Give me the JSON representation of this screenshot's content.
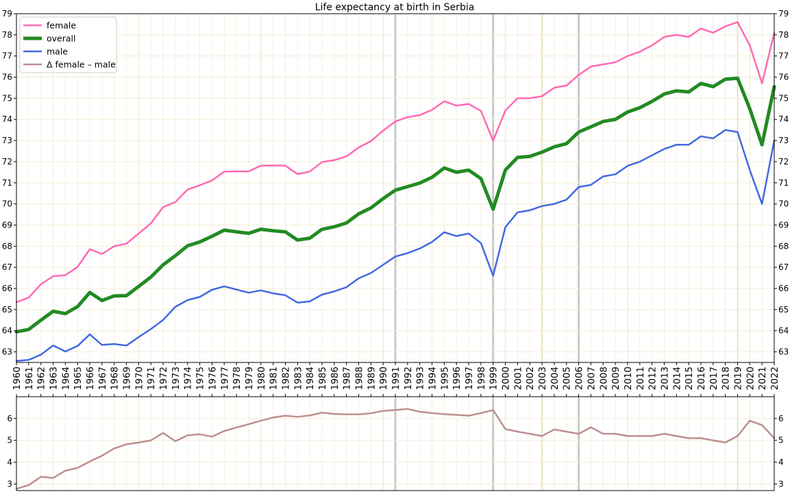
{
  "chart_data": [
    {
      "type": "line",
      "title": "Life expectancy at birth in Serbia",
      "xlabel": "",
      "ylabel": "",
      "xlim": [
        1960,
        2022
      ],
      "ylim": [
        62.5,
        79
      ],
      "yticks": [
        63,
        64,
        65,
        66,
        67,
        68,
        69,
        70,
        71,
        72,
        73,
        74,
        75,
        76,
        77,
        78,
        79
      ],
      "grid": true,
      "legend_position": "top-left",
      "highlight_years": {
        "gray": [
          1991,
          1999,
          2006
        ],
        "tan": [
          2003,
          2019
        ]
      },
      "x": [
        1960,
        1961,
        1962,
        1963,
        1964,
        1965,
        1966,
        1967,
        1968,
        1969,
        1970,
        1971,
        1972,
        1973,
        1974,
        1975,
        1976,
        1977,
        1978,
        1979,
        1980,
        1981,
        1982,
        1983,
        1984,
        1985,
        1986,
        1987,
        1988,
        1989,
        1990,
        1991,
        1992,
        1993,
        1994,
        1995,
        1996,
        1997,
        1998,
        1999,
        2000,
        2001,
        2002,
        2003,
        2004,
        2005,
        2006,
        2007,
        2008,
        2009,
        2010,
        2011,
        2012,
        2013,
        2014,
        2015,
        2016,
        2017,
        2018,
        2019,
        2020,
        2021,
        2022
      ],
      "series": [
        {
          "name": "female",
          "color": "#ff69b4",
          "values": [
            65.35,
            65.57,
            66.2,
            66.58,
            66.63,
            67.02,
            67.86,
            67.63,
            68.0,
            68.12,
            68.6,
            69.08,
            69.85,
            70.09,
            70.68,
            70.88,
            71.11,
            71.53,
            71.54,
            71.54,
            71.81,
            71.82,
            71.81,
            71.41,
            71.53,
            71.98,
            72.07,
            72.25,
            72.67,
            72.97,
            73.47,
            73.9,
            74.11,
            74.2,
            74.45,
            74.86,
            74.65,
            74.73,
            74.4,
            72.99,
            74.42,
            75.0,
            75.0,
            75.1,
            75.5,
            75.6,
            76.1,
            76.5,
            76.6,
            76.7,
            77.0,
            77.2,
            77.5,
            77.9,
            78.0,
            77.9,
            78.3,
            78.1,
            78.4,
            78.6,
            77.5,
            75.7,
            78.1
          ]
        },
        {
          "name": "overall",
          "color": "#228b22",
          "values": [
            63.95,
            64.06,
            64.5,
            64.92,
            64.81,
            65.14,
            65.81,
            65.43,
            65.65,
            65.66,
            66.1,
            66.54,
            67.12,
            67.55,
            68.02,
            68.2,
            68.47,
            68.76,
            68.68,
            68.61,
            68.8,
            68.73,
            68.68,
            68.29,
            68.38,
            68.8,
            68.92,
            69.1,
            69.53,
            69.81,
            70.25,
            70.65,
            70.82,
            70.99,
            71.26,
            71.7,
            71.5,
            71.6,
            71.2,
            69.75,
            71.6,
            72.2,
            72.25,
            72.45,
            72.7,
            72.85,
            73.4,
            73.65,
            73.9,
            74.0,
            74.35,
            74.55,
            74.85,
            75.2,
            75.35,
            75.3,
            75.7,
            75.55,
            75.9,
            75.95,
            74.5,
            72.8,
            75.55
          ]
        },
        {
          "name": "male",
          "color": "#4169e1",
          "values": [
            62.57,
            62.62,
            62.87,
            63.3,
            63.02,
            63.28,
            63.83,
            63.33,
            63.37,
            63.3,
            63.7,
            64.08,
            64.51,
            65.13,
            65.45,
            65.6,
            65.94,
            66.1,
            65.95,
            65.8,
            65.91,
            65.77,
            65.68,
            65.33,
            65.39,
            65.71,
            65.86,
            66.06,
            66.48,
            66.73,
            67.12,
            67.51,
            67.67,
            67.89,
            68.2,
            68.66,
            68.48,
            68.6,
            68.15,
            66.6,
            68.9,
            69.6,
            69.7,
            69.9,
            70.0,
            70.2,
            70.8,
            70.9,
            71.3,
            71.4,
            71.8,
            72.0,
            72.3,
            72.6,
            72.8,
            72.8,
            73.2,
            73.1,
            73.5,
            73.4,
            71.6,
            70.0,
            73.0
          ]
        }
      ]
    },
    {
      "type": "line",
      "title": "",
      "xlabel": "",
      "ylabel": "",
      "xlim": [
        1960,
        2022
      ],
      "ylim": [
        2.7,
        7.0
      ],
      "yticks": [
        3,
        4,
        5,
        6
      ],
      "grid": true,
      "x": [
        1960,
        1961,
        1962,
        1963,
        1964,
        1965,
        1966,
        1967,
        1968,
        1969,
        1970,
        1971,
        1972,
        1973,
        1974,
        1975,
        1976,
        1977,
        1978,
        1979,
        1980,
        1981,
        1982,
        1983,
        1984,
        1985,
        1986,
        1987,
        1988,
        1989,
        1990,
        1991,
        1992,
        1993,
        1994,
        1995,
        1996,
        1997,
        1998,
        1999,
        2000,
        2001,
        2002,
        2003,
        2004,
        2005,
        2006,
        2007,
        2008,
        2009,
        2010,
        2011,
        2012,
        2013,
        2014,
        2015,
        2016,
        2017,
        2018,
        2019,
        2020,
        2021,
        2022
      ],
      "series": [
        {
          "name": "Δ female – male",
          "color": "#bc8f8f",
          "values": [
            2.78,
            2.95,
            3.33,
            3.28,
            3.61,
            3.74,
            4.03,
            4.3,
            4.63,
            4.82,
            4.9,
            5.0,
            5.34,
            4.96,
            5.23,
            5.28,
            5.17,
            5.43,
            5.59,
            5.74,
            5.9,
            6.05,
            6.13,
            6.08,
            6.14,
            6.27,
            6.21,
            6.19,
            6.19,
            6.24,
            6.35,
            6.39,
            6.44,
            6.31,
            6.25,
            6.2,
            6.17,
            6.13,
            6.25,
            6.39,
            5.52,
            5.4,
            5.3,
            5.2,
            5.5,
            5.4,
            5.3,
            5.6,
            5.3,
            5.3,
            5.2,
            5.2,
            5.2,
            5.3,
            5.2,
            5.1,
            5.1,
            5.0,
            4.9,
            5.2,
            5.9,
            5.7,
            5.1
          ]
        }
      ]
    }
  ]
}
